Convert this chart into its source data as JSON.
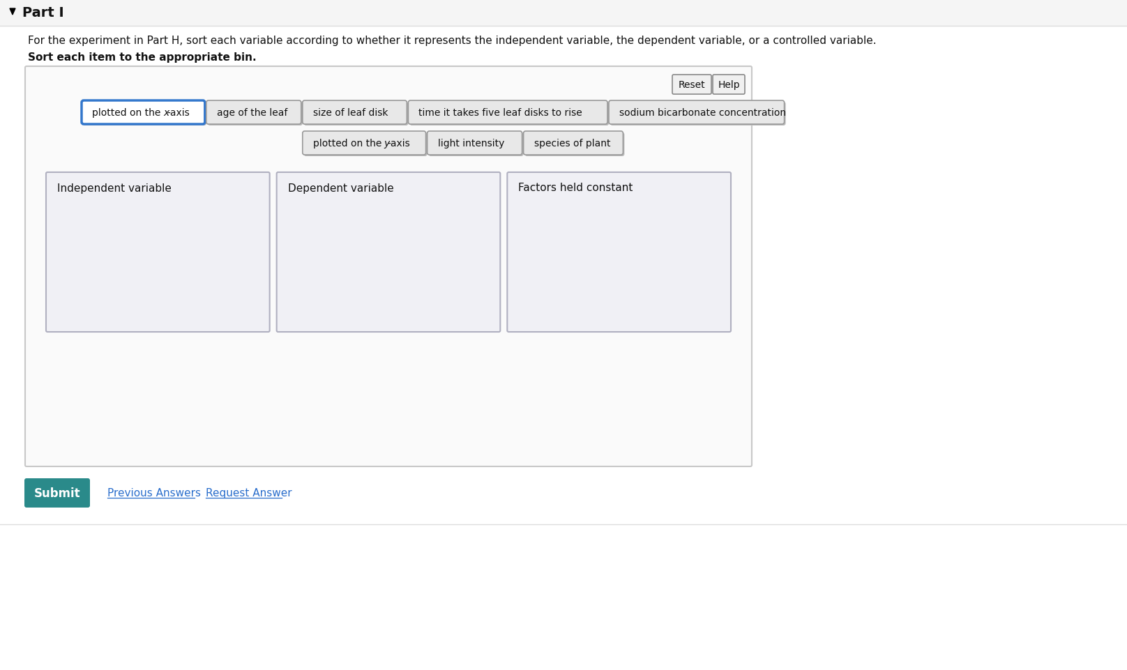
{
  "bg_color": "#ffffff",
  "header_bg": "#f5f5f5",
  "title": "Part I",
  "instruction1": "For the experiment in Part H, sort each variable according to whether it represents the independent variable, the dependent variable, or a controlled variable.",
  "instruction2": "Sort each item to the appropriate bin.",
  "tags_row1": [
    "plotted on the x-axis",
    "age of the leaf",
    "size of leaf disk",
    "time it takes five leaf disks to rise",
    "sodium bicarbonate concentration"
  ],
  "tags_row2": [
    "plotted on the y-axis",
    "light intensity",
    "species of plant"
  ],
  "tag_selected": "plotted on the x-axis",
  "bins": [
    "Independent variable",
    "Dependent variable",
    "Factors held constant"
  ],
  "btn_reset_label": "Reset",
  "btn_help_label": "Help",
  "btn_submit_label": "Submit",
  "link1": "Previous Answers",
  "link2": "Request Answer",
  "outer_box_color": "#c8c8c8",
  "bin_box_color": "#b0b0c0",
  "bin_bg_color": "#f0f0f5",
  "tag_bg_default": "#e8e8e8",
  "tag_border_default": "#999999",
  "tag_selected_bg": "#ffffff",
  "tag_selected_border": "#3377cc",
  "submit_bg": "#2a8a8a",
  "submit_text": "#ffffff",
  "link_color": "#2a6ecc"
}
